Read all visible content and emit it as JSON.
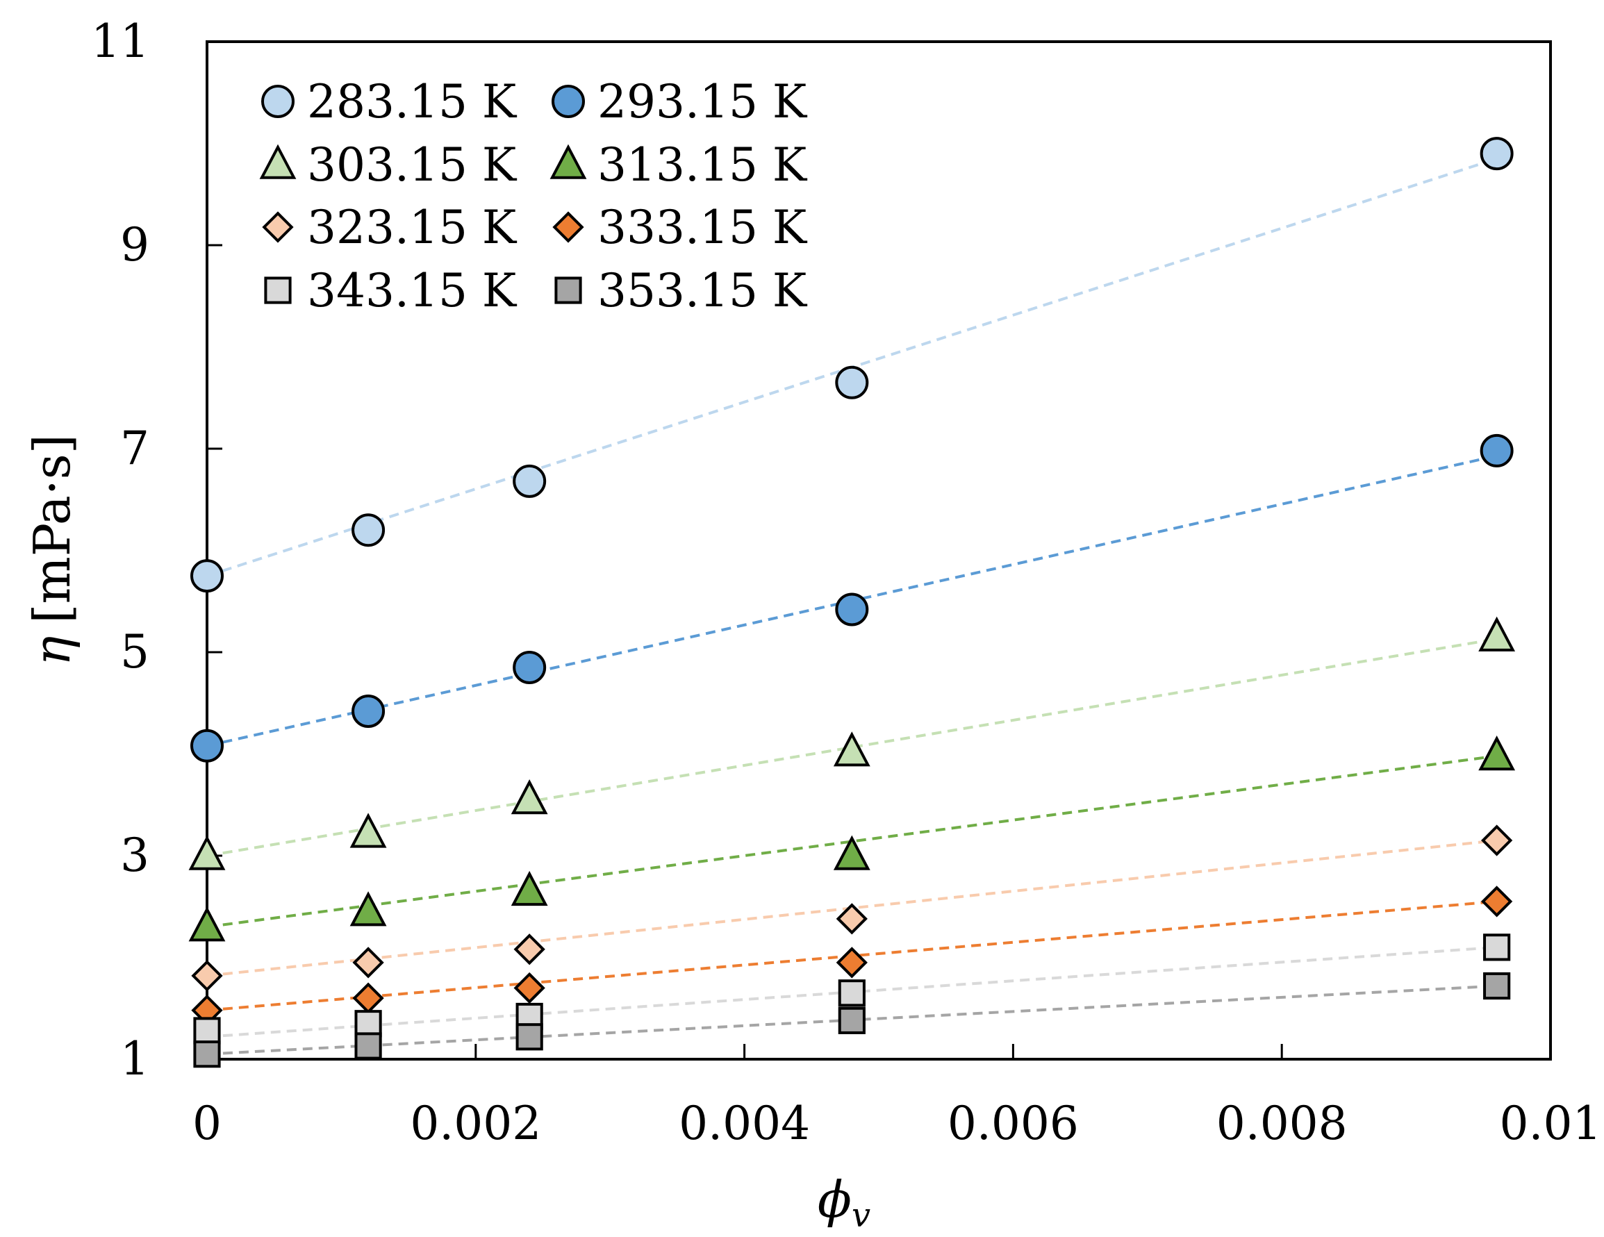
{
  "chart_data": {
    "type": "scatter",
    "title": "",
    "xlabel": "ϕ",
    "xlabel_sub": "v",
    "ylabel": "η",
    "ylabel_units": "[mPa·s]",
    "xlim": [
      0,
      0.01
    ],
    "ylim": [
      1,
      11
    ],
    "xticks": [
      0,
      0.002,
      0.004,
      0.006,
      0.008,
      0.01
    ],
    "xtick_labels": [
      "0",
      "0.002",
      "0.004",
      "0.006",
      "0.008",
      "0.01"
    ],
    "yticks": [
      1,
      3,
      5,
      7,
      9,
      11
    ],
    "ytick_labels": [
      "1",
      "3",
      "5",
      "7",
      "9",
      "11"
    ],
    "grid": false,
    "legend_position": "top-left",
    "x": [
      0,
      0.0012,
      0.0024,
      0.0048,
      0.0096
    ],
    "series": [
      {
        "name": "283.15 K",
        "marker": "circle",
        "color": "#bdd7ee",
        "values": [
          5.75,
          6.2,
          6.68,
          7.65,
          9.9
        ],
        "fit": [
          5.75,
          9.85
        ]
      },
      {
        "name": "293.15 K",
        "marker": "circle",
        "color": "#5b9bd5",
        "values": [
          4.08,
          4.42,
          4.85,
          5.42,
          6.98
        ],
        "fit": [
          4.08,
          6.93
        ]
      },
      {
        "name": "303.15 K",
        "marker": "triangle",
        "color": "#c5e0b4",
        "values": [
          3.0,
          3.22,
          3.55,
          4.02,
          5.15
        ],
        "fit": [
          3.0,
          5.13
        ]
      },
      {
        "name": "313.15 K",
        "marker": "triangle",
        "color": "#70ad47",
        "values": [
          2.3,
          2.45,
          2.65,
          3.0,
          3.98
        ],
        "fit": [
          2.3,
          3.98
        ]
      },
      {
        "name": "323.15 K",
        "marker": "diamond",
        "color": "#f8cbad",
        "values": [
          1.82,
          1.95,
          2.08,
          2.38,
          3.15
        ],
        "fit": [
          1.82,
          3.15
        ]
      },
      {
        "name": "333.15 K",
        "marker": "diamond",
        "color": "#ed7d31",
        "values": [
          1.48,
          1.6,
          1.7,
          1.95,
          2.55
        ],
        "fit": [
          1.48,
          2.55
        ]
      },
      {
        "name": "343.15 K",
        "marker": "square",
        "color": "#d9d9d9",
        "values": [
          1.28,
          1.35,
          1.42,
          1.65,
          2.1
        ],
        "fit": [
          1.22,
          2.1
        ]
      },
      {
        "name": "353.15 K",
        "marker": "square",
        "color": "#a5a5a5",
        "values": [
          1.05,
          1.13,
          1.22,
          1.38,
          1.72
        ],
        "fit": [
          1.05,
          1.72
        ]
      }
    ]
  }
}
